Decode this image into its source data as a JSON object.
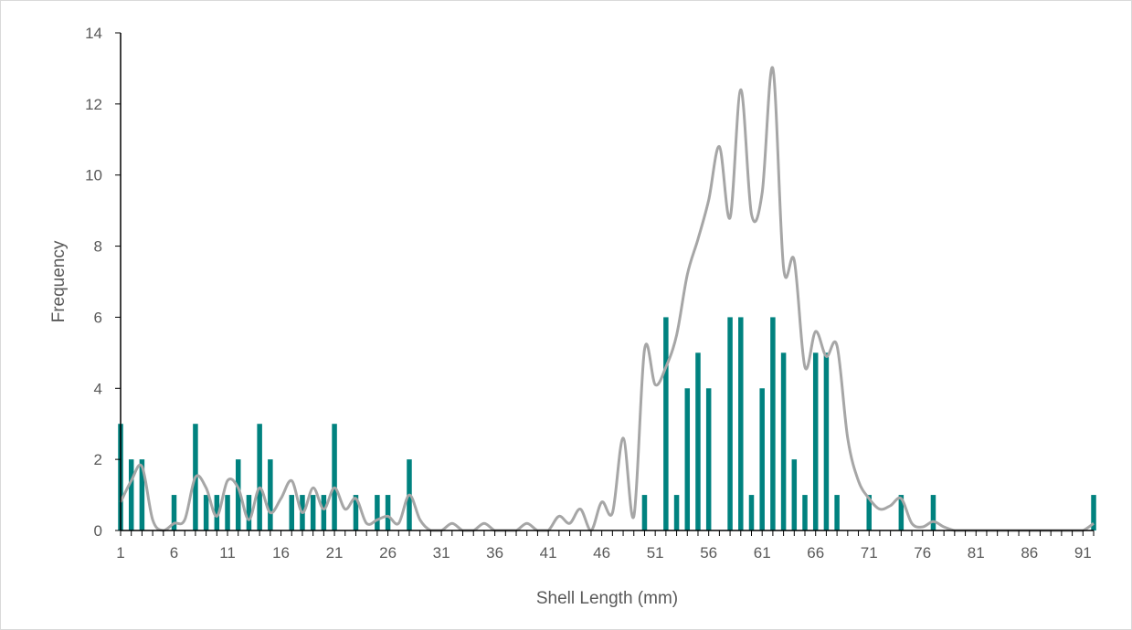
{
  "chart_data": {
    "type": "bar",
    "title": "",
    "xlabel": "Shell Length (mm)",
    "ylabel": "Frequency",
    "ylim": [
      0,
      14
    ],
    "yticks": [
      "0",
      "2",
      "4",
      "6",
      "8",
      "10",
      "12",
      "14"
    ],
    "xlim": [
      1,
      92
    ],
    "xtick_labels": [
      "1",
      "6",
      "11",
      "16",
      "21",
      "26",
      "31",
      "36",
      "41",
      "46",
      "51",
      "56",
      "61",
      "66",
      "71",
      "76",
      "81",
      "86",
      "91"
    ],
    "grid": false,
    "legend": "none",
    "colors": {
      "bars": "#00827f",
      "curve": "#a6a6a6",
      "axis": "#000000"
    },
    "series": [
      {
        "type": "bar",
        "x": [
          1,
          2,
          3,
          6,
          8,
          9,
          10,
          11,
          12,
          13,
          14,
          15,
          17,
          18,
          19,
          20,
          21,
          23,
          25,
          26,
          28,
          50,
          52,
          53,
          54,
          55,
          56,
          58,
          59,
          60,
          61,
          62,
          63,
          64,
          65,
          66,
          67,
          68,
          71,
          74,
          77,
          92
        ],
        "values": [
          3,
          2,
          2,
          1,
          3,
          1,
          1,
          1,
          2,
          1,
          3,
          2,
          1,
          1,
          1,
          1,
          3,
          1,
          1,
          1,
          2,
          1,
          6,
          1,
          4,
          5,
          4,
          6,
          6,
          1,
          4,
          6,
          5,
          2,
          1,
          5,
          5,
          1,
          1,
          1,
          1,
          1
        ]
      },
      {
        "type": "line",
        "smooth": true,
        "x": [
          1,
          2,
          3,
          4,
          5,
          6,
          7,
          8,
          9,
          10,
          11,
          12,
          13,
          14,
          15,
          16,
          17,
          18,
          19,
          20,
          21,
          22,
          23,
          24,
          25,
          26,
          27,
          28,
          29,
          30,
          31,
          32,
          33,
          34,
          35,
          36,
          37,
          38,
          39,
          40,
          41,
          42,
          43,
          44,
          45,
          46,
          47,
          48,
          49,
          50,
          51,
          52,
          53,
          54,
          55,
          56,
          57,
          58,
          59,
          60,
          61,
          62,
          63,
          64,
          65,
          66,
          67,
          68,
          69,
          70,
          71,
          72,
          73,
          74,
          75,
          76,
          77,
          78,
          79,
          80,
          81,
          82,
          83,
          84,
          85,
          86,
          87,
          88,
          89,
          90,
          91,
          92
        ],
        "values": [
          0.8,
          1.4,
          1.8,
          0.3,
          0.0,
          0.2,
          0.3,
          1.5,
          1.2,
          0.4,
          1.4,
          1.2,
          0.3,
          1.2,
          0.5,
          0.9,
          1.4,
          0.5,
          1.2,
          0.6,
          1.2,
          0.6,
          0.9,
          0.2,
          0.3,
          0.4,
          0.2,
          1.0,
          0.3,
          0.0,
          0.0,
          0.2,
          0.0,
          0.0,
          0.2,
          0.0,
          0.0,
          0.0,
          0.2,
          0.0,
          0.0,
          0.4,
          0.2,
          0.6,
          0.0,
          0.8,
          0.5,
          2.6,
          0.4,
          5.1,
          4.1,
          4.6,
          5.5,
          7.2,
          8.2,
          9.3,
          10.8,
          8.8,
          12.4,
          8.9,
          9.5,
          13.0,
          7.4,
          7.6,
          4.6,
          5.6,
          4.9,
          5.2,
          2.6,
          1.4,
          0.9,
          0.6,
          0.7,
          0.9,
          0.2,
          0.1,
          0.25,
          0.1,
          0.0,
          0.0,
          0.0,
          0.0,
          0.0,
          0.0,
          0.0,
          0.0,
          0.0,
          0.0,
          0.0,
          0.0,
          0.0,
          0.2
        ]
      }
    ]
  }
}
